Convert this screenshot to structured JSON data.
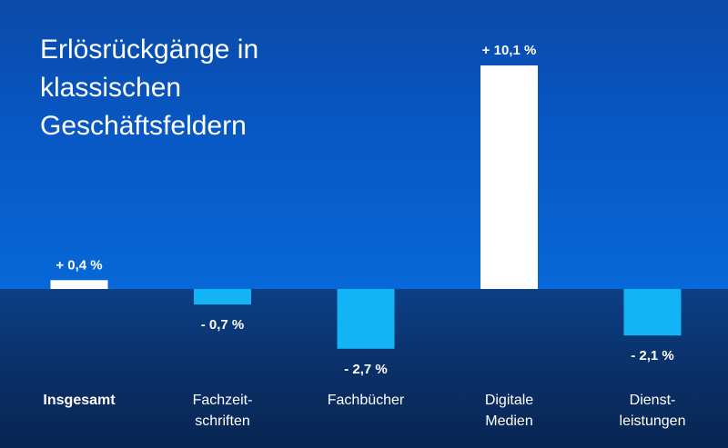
{
  "chart_data": {
    "type": "bar",
    "title_lines": [
      "Erlösrückgänge in",
      "klassischen",
      "Geschäftsfeldern"
    ],
    "categories": [
      {
        "lines": [
          "Insgesamt"
        ],
        "bold": true
      },
      {
        "lines": [
          "Fachzeit-",
          "schriften"
        ],
        "bold": false
      },
      {
        "lines": [
          "Fachbücher"
        ],
        "bold": false
      },
      {
        "lines": [
          "Digitale",
          "Medien"
        ],
        "bold": false
      },
      {
        "lines": [
          "Dienst-",
          "leistungen"
        ],
        "bold": false
      }
    ],
    "values": [
      0.4,
      -0.7,
      -2.7,
      10.1,
      -2.1
    ],
    "value_labels": [
      "+ 0,4 %",
      "- 0,7 %",
      "- 2,7 %",
      "+ 10,1 %",
      "- 2,1 %"
    ],
    "ylim": [
      -2.7,
      10.1
    ],
    "grid": false,
    "colors": {
      "positive": "#ffffff",
      "negative": "#12b4f5",
      "label": "#ffffff"
    }
  }
}
